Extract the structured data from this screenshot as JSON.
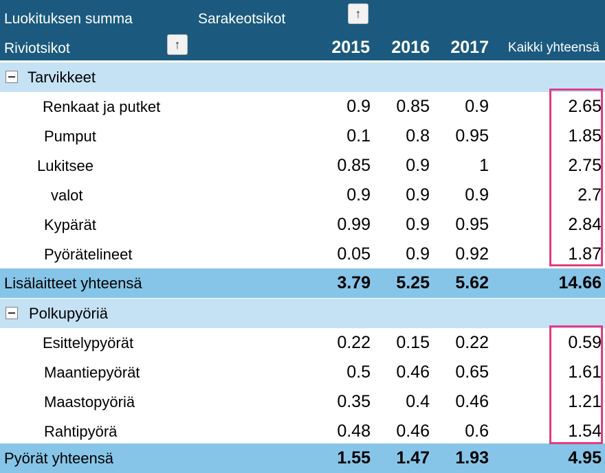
{
  "header": {
    "values_label": "Luokituksen summa",
    "column_labels": "Sarakeotsikot",
    "row_labels": "Riviotsikot",
    "years": [
      "2015",
      "2016",
      "2017"
    ],
    "grand_total_label": "Kaikki yhteensä",
    "sort_icon": "up-arrow-icon"
  },
  "groups": [
    {
      "name": "Tarvikkeet",
      "items": [
        {
          "label": "Renkaat ja putket",
          "values": [
            "0.9",
            "0.85",
            "0.9"
          ],
          "total": "2.65"
        },
        {
          "label": "Pumput",
          "values": [
            "0.1",
            "0.8",
            "0.95"
          ],
          "total": "1.85"
        },
        {
          "label": "Lukitsee",
          "values": [
            "0.85",
            "0.9",
            "1"
          ],
          "total": "2.75"
        },
        {
          "label": "valot",
          "values": [
            "0.9",
            "0.9",
            "0.9"
          ],
          "total": "2.7"
        },
        {
          "label": "Kypärät",
          "values": [
            "0.99",
            "0.9",
            "0.95"
          ],
          "total": "2.84"
        },
        {
          "label": "Pyörätelineet",
          "values": [
            "0.05",
            "0.9",
            "0.92"
          ],
          "total": "1.87"
        }
      ],
      "subtotal": {
        "label": "Lisälaitteet yhteensä",
        "values": [
          "3.79",
          "5.25",
          "5.62"
        ],
        "total": "14.66"
      }
    },
    {
      "name": "Polkupyöriä",
      "items": [
        {
          "label": "Esittelypyörät",
          "values": [
            "0.22",
            "0.15",
            "0.22"
          ],
          "total": "0.59"
        },
        {
          "label": "Maantiepyörät",
          "values": [
            "0.5",
            "0.46",
            "0.65"
          ],
          "total": "1.61"
        },
        {
          "label": "Maastopyöriä",
          "values": [
            "0.35",
            "0.4",
            "0.46"
          ],
          "total": "1.21"
        },
        {
          "label": "Rahtipyörä",
          "values": [
            "0.48",
            "0.46",
            "0.6"
          ],
          "total": "1.54"
        }
      ],
      "subtotal": {
        "label": "Pyörät yhteensä",
        "values": [
          "1.55",
          "1.47",
          "1.93"
        ],
        "total": "4.95"
      }
    }
  ],
  "colors": {
    "header_bg": "#1b5a7e",
    "group_bg": "#c5e2f5",
    "subtotal_bg": "#86c5e8",
    "highlight": "#e23b82"
  }
}
